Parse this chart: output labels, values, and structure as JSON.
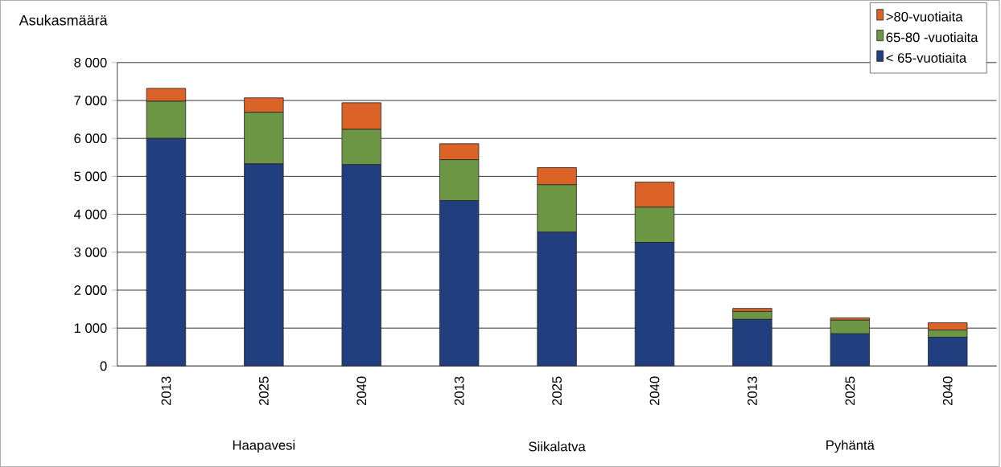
{
  "chart_data": {
    "type": "bar",
    "stacked": true,
    "ylabel": "Asukasmäärä",
    "categories": [
      "2013",
      "2025",
      "2040",
      "2013",
      "2025",
      "2040",
      "2013",
      "2025",
      "2040"
    ],
    "series": [
      {
        "name": "< 65-vuotiaita",
        "color": "#213f7e",
        "values": [
          6000,
          5330,
          5310,
          4360,
          3530,
          3260,
          1230,
          850,
          760
        ]
      },
      {
        "name": "65-80 -vuotiaita",
        "color": "#6c9644",
        "values": [
          980,
          1360,
          930,
          1080,
          1250,
          930,
          210,
          360,
          190
        ]
      },
      {
        "name": ">80-vuotiaita",
        "color": "#db6327",
        "values": [
          340,
          380,
          700,
          420,
          450,
          660,
          80,
          60,
          190
        ]
      }
    ],
    "annotations": [
      "Haapavesi",
      "Siikalatva",
      "Pyhäntä"
    ],
    "ylim": [
      0,
      8000
    ],
    "yticks": [
      {
        "value": 0,
        "label": "0"
      },
      {
        "value": 1000,
        "label": "1 000"
      },
      {
        "value": 2000,
        "label": "2 000"
      },
      {
        "value": 3000,
        "label": "3 000"
      },
      {
        "value": 4000,
        "label": "4 000"
      },
      {
        "value": 5000,
        "label": "5 000"
      },
      {
        "value": 6000,
        "label": "6 000"
      },
      {
        "value": 7000,
        "label": "7 000"
      },
      {
        "value": 8000,
        "label": "8 000"
      }
    ],
    "grid": "y",
    "legend": "top right"
  }
}
